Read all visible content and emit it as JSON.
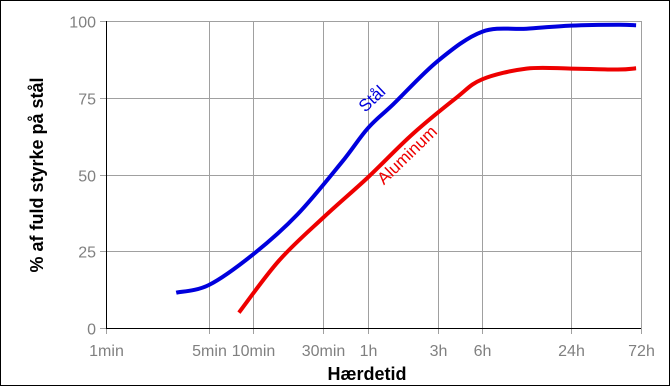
{
  "chart_data": {
    "type": "line",
    "xlabel": "Hærdetid",
    "ylabel": "% af fuld styrke på stål",
    "x_scale": "log",
    "xlim": [
      "1min",
      "72h"
    ],
    "ylim": [
      0,
      100
    ],
    "grid": true,
    "x_ticks": [
      {
        "label": "1min",
        "minutes": 1
      },
      {
        "label": "5min",
        "minutes": 5
      },
      {
        "label": "10min",
        "minutes": 10
      },
      {
        "label": "30min",
        "minutes": 30
      },
      {
        "label": "1h",
        "minutes": 60
      },
      {
        "label": "3h",
        "minutes": 180
      },
      {
        "label": "6h",
        "minutes": 360
      },
      {
        "label": "24h",
        "minutes": 1440
      },
      {
        "label": "72h",
        "minutes": 4320
      }
    ],
    "y_ticks": [
      0,
      25,
      50,
      75,
      100
    ],
    "series": [
      {
        "name": "Stål",
        "color": "#0000dd",
        "points": [
          {
            "x_minutes": 3,
            "y": 11.5
          },
          {
            "x_minutes": 5,
            "y": 14
          },
          {
            "x_minutes": 10,
            "y": 24
          },
          {
            "x_minutes": 20,
            "y": 37
          },
          {
            "x_minutes": 40,
            "y": 54
          },
          {
            "x_minutes": 60,
            "y": 65
          },
          {
            "x_minutes": 90,
            "y": 73
          },
          {
            "x_minutes": 180,
            "y": 87
          },
          {
            "x_minutes": 360,
            "y": 96.5
          },
          {
            "x_minutes": 720,
            "y": 97.5
          },
          {
            "x_minutes": 1440,
            "y": 98.5
          },
          {
            "x_minutes": 3000,
            "y": 98.8
          },
          {
            "x_minutes": 4000,
            "y": 98.6
          }
        ]
      },
      {
        "name": "Aluminum",
        "color": "#ee0000",
        "points": [
          {
            "x_minutes": 8,
            "y": 5
          },
          {
            "x_minutes": 15,
            "y": 22
          },
          {
            "x_minutes": 30,
            "y": 36
          },
          {
            "x_minutes": 60,
            "y": 49
          },
          {
            "x_minutes": 120,
            "y": 63
          },
          {
            "x_minutes": 240,
            "y": 75
          },
          {
            "x_minutes": 360,
            "y": 81
          },
          {
            "x_minutes": 720,
            "y": 84.5
          },
          {
            "x_minutes": 1440,
            "y": 84.5
          },
          {
            "x_minutes": 3000,
            "y": 84.2
          },
          {
            "x_minutes": 4000,
            "y": 84.6
          }
        ]
      }
    ]
  }
}
